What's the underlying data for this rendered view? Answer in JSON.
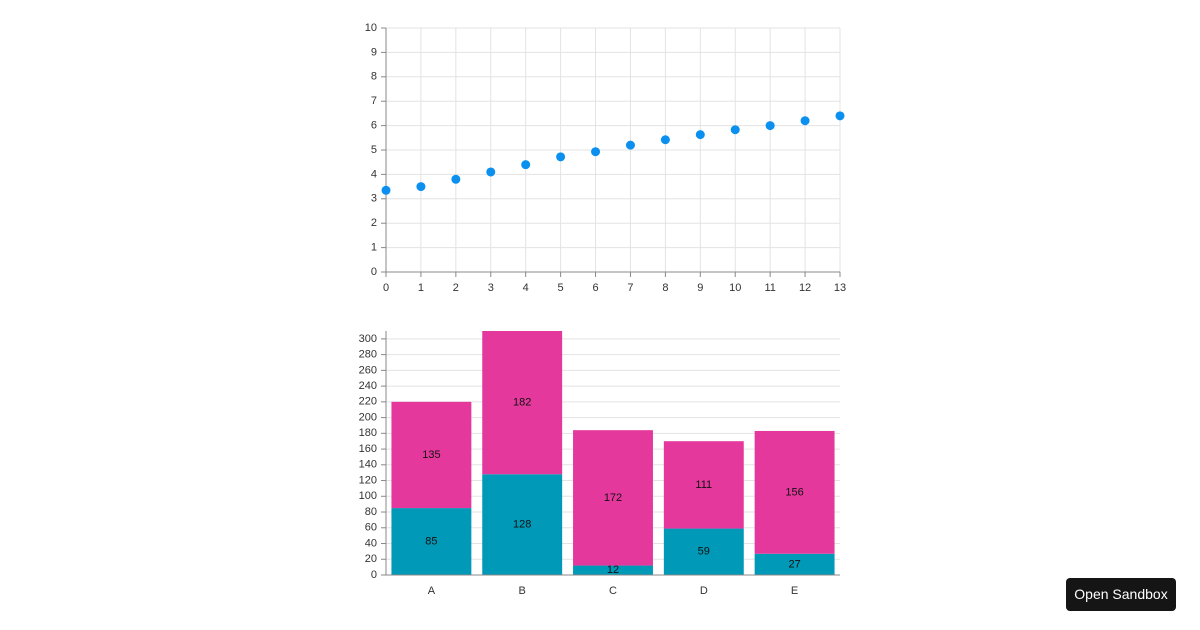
{
  "chart_data": [
    {
      "type": "scatter",
      "x": [
        0,
        1,
        2,
        3,
        4,
        5,
        6,
        7,
        8,
        9,
        10,
        11,
        12,
        13
      ],
      "values": [
        3.35,
        3.5,
        3.8,
        4.1,
        4.4,
        4.72,
        4.93,
        5.2,
        5.42,
        5.63,
        5.83,
        6.0,
        6.2,
        6.4
      ],
      "color": "#0b90f0",
      "xlim": [
        0,
        13
      ],
      "xticks": [
        0,
        1,
        2,
        3,
        4,
        5,
        6,
        7,
        8,
        9,
        10,
        11,
        12,
        13
      ],
      "ylim": [
        0,
        10
      ],
      "yticks": [
        0,
        1,
        2,
        3,
        4,
        5,
        6,
        7,
        8,
        9,
        10
      ],
      "grid": true
    },
    {
      "type": "stacked-bar",
      "categories": [
        "A",
        "B",
        "C",
        "D",
        "E"
      ],
      "series": [
        {
          "color": "#0099b8",
          "values": [
            85,
            128,
            12,
            59,
            27
          ]
        },
        {
          "color": "#e5389c",
          "values": [
            135,
            182,
            172,
            111,
            156
          ]
        }
      ],
      "ylim": [
        0,
        310
      ],
      "yticks": [
        0,
        20,
        40,
        60,
        80,
        100,
        120,
        140,
        160,
        180,
        200,
        220,
        240,
        260,
        280,
        300
      ],
      "grid": true
    }
  ],
  "button": {
    "label": "Open Sandbox"
  }
}
